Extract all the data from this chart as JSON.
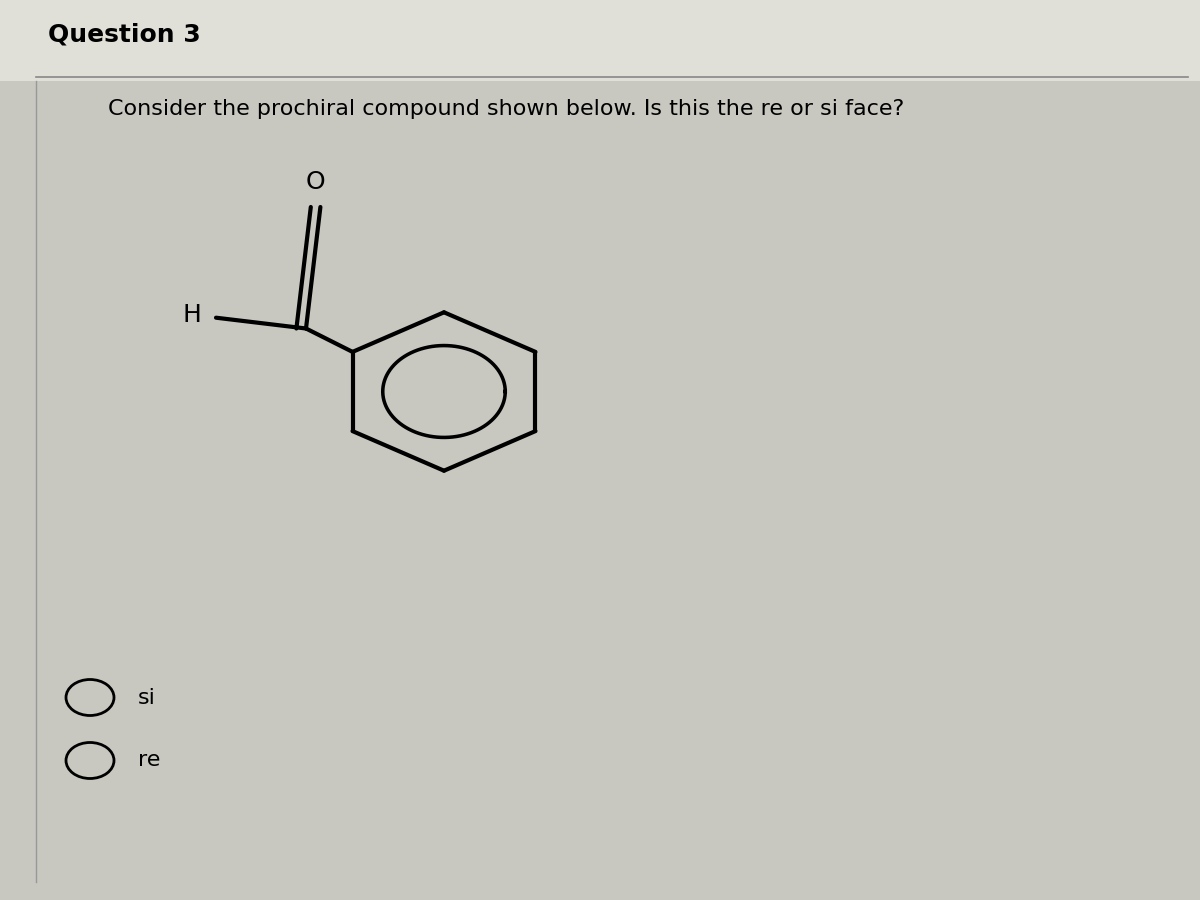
{
  "title": "Question 3",
  "question_text": "Consider the prochiral compound shown below. Is this the re or si face?",
  "background_color": "#c8c8c0",
  "header_bg": "#e0e0d8",
  "title_fontsize": 18,
  "question_fontsize": 16,
  "option_fontsize": 16,
  "options": [
    "si",
    "re"
  ],
  "lw_molecule": 3.0
}
